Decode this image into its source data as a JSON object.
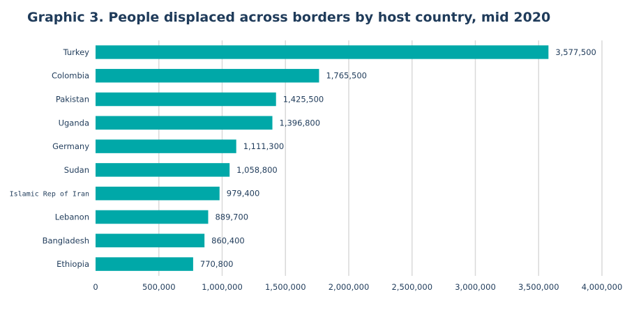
{
  "chart_data": {
    "type": "bar",
    "orientation": "horizontal",
    "title": "Graphic 3. People displaced across borders by host country, mid 2020",
    "categories": [
      "Turkey",
      "Colombia",
      "Pakistan",
      "Uganda",
      "Germany",
      "Sudan",
      "Islamic Rep of Iran",
      "Lebanon",
      "Bangladesh",
      "Ethiopia"
    ],
    "values": [
      3577500,
      1765500,
      1425500,
      1396800,
      1111300,
      1058800,
      979400,
      889700,
      860400,
      770800
    ],
    "value_labels": [
      "3,577,500",
      "1,765,500",
      "1,425,500",
      "1,396,800",
      "1,111,300",
      "1,058,800",
      "979,400",
      "889,700",
      "860,400",
      "770,800"
    ],
    "xlim": [
      0,
      4000000
    ],
    "xticks": [
      0,
      500000,
      1000000,
      1500000,
      2000000,
      2500000,
      3000000,
      3500000,
      4000000
    ],
    "xtick_labels": [
      "0",
      "500,000",
      "1,000,000",
      "1,500,000",
      "2,000,000",
      "2,500,000",
      "3,000,000",
      "3,500,000",
      "4,000,000"
    ],
    "xlabel": "",
    "ylabel": "",
    "grid": "vertical",
    "legend": "none",
    "bar_color": "#00a8a8",
    "text_color": "#1f3b5a",
    "grid_color": "#d9d9d9"
  }
}
